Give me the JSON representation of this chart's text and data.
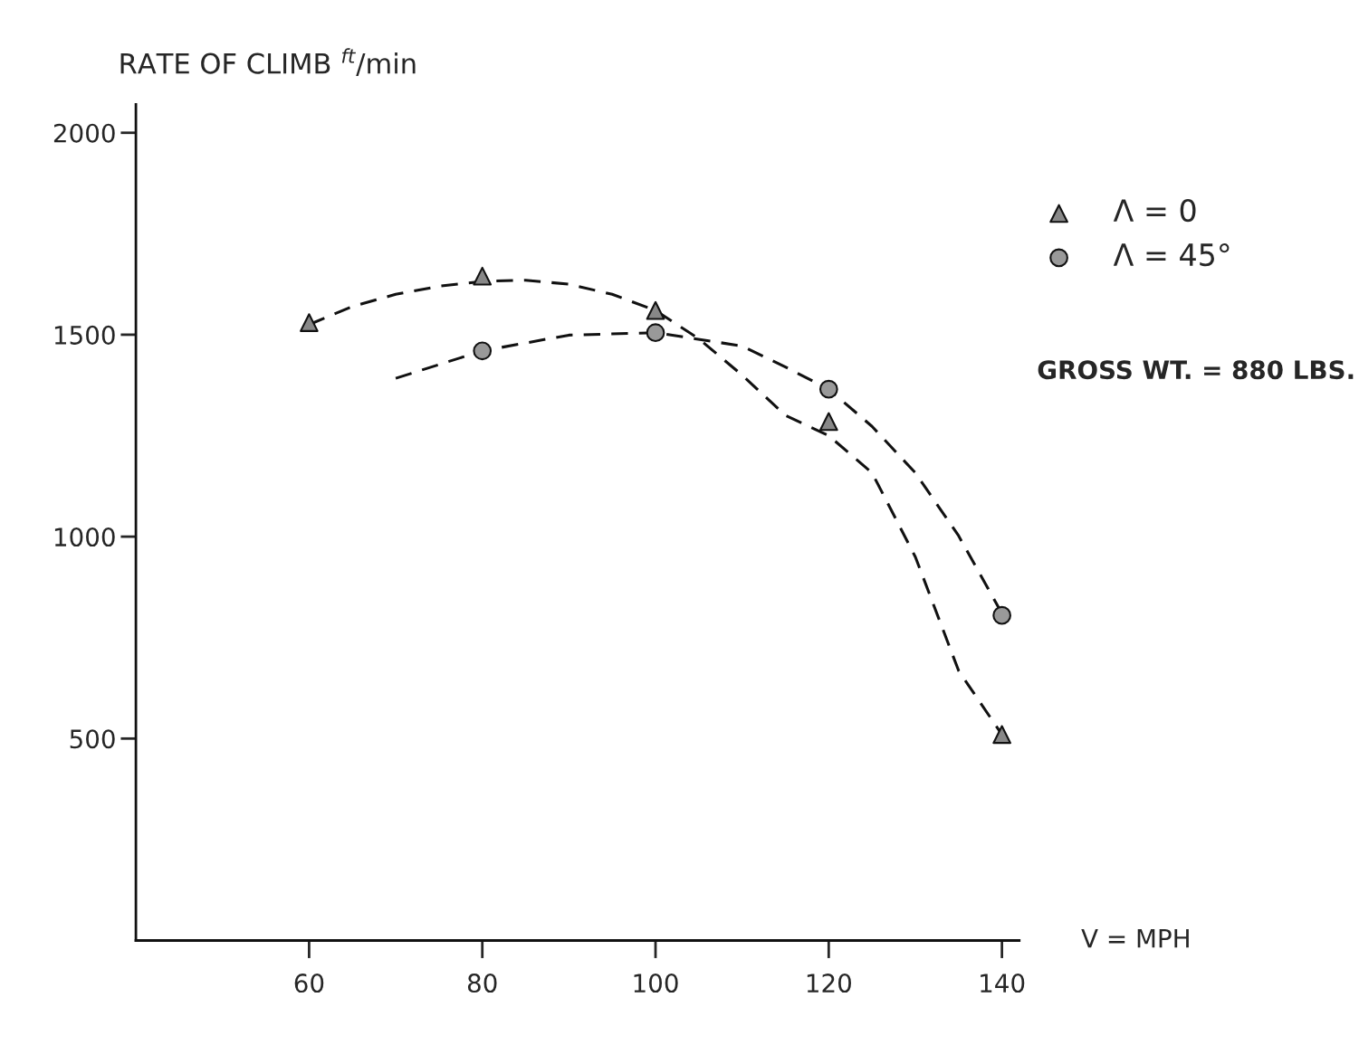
{
  "chart_data": {
    "type": "line",
    "ylabel": "RATE OF CLIMB $^{ft}$/min",
    "xlabel": "V = MPH",
    "annotations": [
      "GROSS WT. = 880 LBS."
    ],
    "xlim": [
      40,
      142
    ],
    "ylim": [
      0,
      2070
    ],
    "xticks": [
      60,
      80,
      100,
      120,
      140
    ],
    "yticks": [
      500,
      1000,
      1500,
      2000
    ],
    "grid": false,
    "legend": "top right",
    "series": [
      {
        "color": "#111111",
        "line_style": "dashed",
        "marker": "none",
        "x": [
          60,
          65,
          70,
          75,
          80,
          85,
          90,
          95,
          100,
          105,
          110,
          115,
          120,
          125,
          130,
          135,
          140
        ],
        "values": [
          1525,
          1570,
          1600,
          1620,
          1632,
          1635,
          1625,
          1600,
          1560,
          1490,
          1400,
          1300,
          1250,
          1158,
          950,
          668,
          510
        ]
      },
      {
        "color": "#111111",
        "line_style": "dashed",
        "marker": "none",
        "x": [
          70,
          80,
          90,
          100,
          110,
          115,
          120,
          125,
          130,
          135,
          140
        ],
        "values": [
          1392,
          1460,
          1499,
          1505,
          1472,
          1420,
          1365,
          1273,
          1158,
          1002,
          810
        ]
      },
      {
        "type": "scatter",
        "name": "Λ = 0",
        "color": "#888888",
        "marker": "triangle",
        "x": [
          60,
          80,
          100,
          120,
          140
        ],
        "values": [
          1530,
          1645,
          1560,
          1285,
          510
        ]
      },
      {
        "type": "scatter",
        "name": "Λ = 45°",
        "color": "#999999",
        "marker": "circle",
        "x": [
          80,
          100,
          120,
          140
        ],
        "values": [
          1460,
          1505,
          1365,
          805
        ]
      }
    ]
  }
}
